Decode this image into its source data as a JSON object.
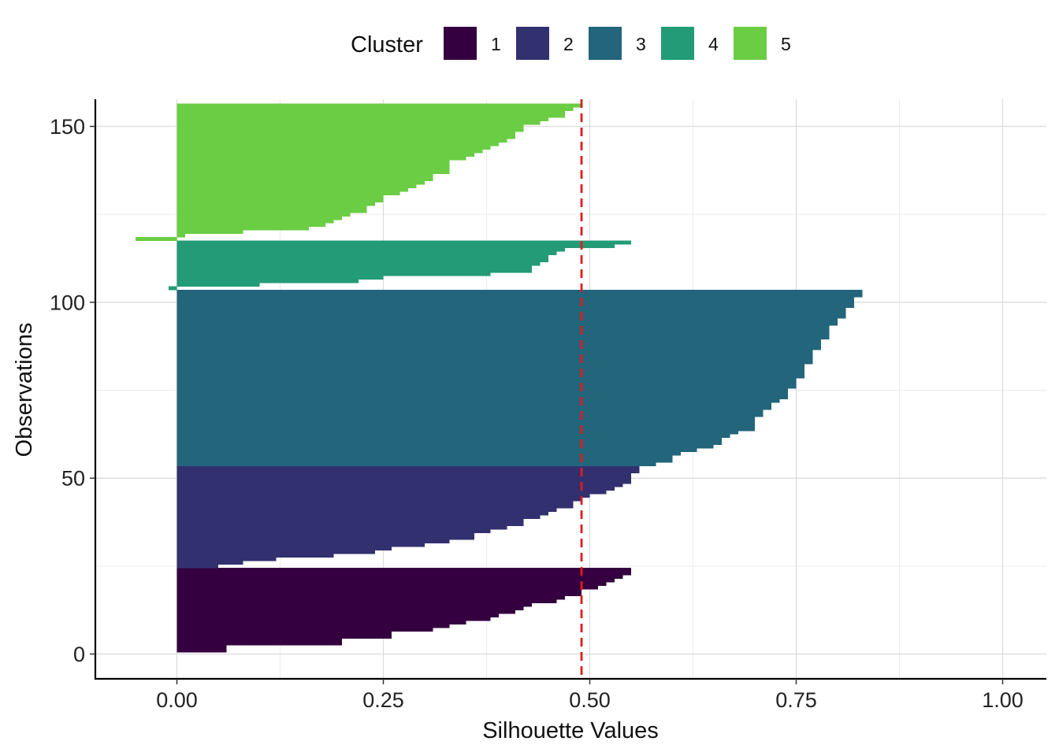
{
  "chart_data": {
    "type": "bar",
    "orientation": "horizontal",
    "xlabel": "Silhouette Values",
    "ylabel": "Observations",
    "xlim": [
      -0.1,
      1.05
    ],
    "ylim": [
      -7,
      157
    ],
    "x_ticks": [
      0.0,
      0.25,
      0.5,
      0.75,
      1.0
    ],
    "x_tick_labels": [
      "0.00",
      "0.25",
      "0.50",
      "0.75",
      "1.00"
    ],
    "y_ticks": [
      0,
      50,
      100,
      150
    ],
    "y_tick_labels": [
      "0",
      "50",
      "100",
      "150"
    ],
    "grid": true,
    "legend": {
      "title": "Cluster",
      "position": "top",
      "entries": [
        "1",
        "2",
        "3",
        "4",
        "5"
      ]
    },
    "reference_line": {
      "x": 0.49,
      "style": "dashed",
      "color": "#e31a1c"
    },
    "series": [
      {
        "name": "1",
        "color": "#35003f",
        "silhouette": [
          0.55,
          0.55,
          0.54,
          0.53,
          0.52,
          0.51,
          0.49,
          0.49,
          0.47,
          0.46,
          0.43,
          0.42,
          0.41,
          0.39,
          0.38,
          0.35,
          0.33,
          0.31,
          0.26,
          0.26,
          0.2,
          0.2,
          0.06,
          0.06
        ]
      },
      {
        "name": "2",
        "color": "#33306f",
        "silhouette": [
          0.56,
          0.56,
          0.55,
          0.55,
          0.55,
          0.54,
          0.53,
          0.52,
          0.5,
          0.49,
          0.48,
          0.48,
          0.46,
          0.45,
          0.44,
          0.42,
          0.42,
          0.4,
          0.38,
          0.36,
          0.36,
          0.33,
          0.3,
          0.26,
          0.24,
          0.19,
          0.12,
          0.08,
          0.05
        ]
      },
      {
        "name": "3",
        "color": "#23657b",
        "silhouette": [
          0.83,
          0.83,
          0.82,
          0.82,
          0.82,
          0.81,
          0.81,
          0.81,
          0.8,
          0.8,
          0.79,
          0.79,
          0.79,
          0.79,
          0.78,
          0.78,
          0.78,
          0.77,
          0.77,
          0.77,
          0.77,
          0.76,
          0.76,
          0.76,
          0.76,
          0.75,
          0.75,
          0.75,
          0.74,
          0.74,
          0.74,
          0.73,
          0.72,
          0.72,
          0.71,
          0.71,
          0.7,
          0.7,
          0.7,
          0.7,
          0.68,
          0.67,
          0.66,
          0.66,
          0.65,
          0.63,
          0.61,
          0.6,
          0.6,
          0.58
        ]
      },
      {
        "name": "4",
        "color": "#229b76",
        "silhouette": [
          0.55,
          0.53,
          0.47,
          0.46,
          0.45,
          0.45,
          0.44,
          0.43,
          0.43,
          0.38,
          0.25,
          0.22,
          0.1,
          -0.01
        ]
      },
      {
        "name": "5",
        "color": "#6acd43",
        "silhouette": [
          0.49,
          0.48,
          0.47,
          0.47,
          0.45,
          0.44,
          0.42,
          0.42,
          0.41,
          0.41,
          0.4,
          0.39,
          0.38,
          0.37,
          0.36,
          0.35,
          0.33,
          0.33,
          0.33,
          0.33,
          0.31,
          0.31,
          0.3,
          0.29,
          0.28,
          0.27,
          0.25,
          0.25,
          0.24,
          0.23,
          0.23,
          0.21,
          0.2,
          0.19,
          0.18,
          0.16,
          0.08,
          0.01,
          -0.05
        ]
      }
    ]
  }
}
